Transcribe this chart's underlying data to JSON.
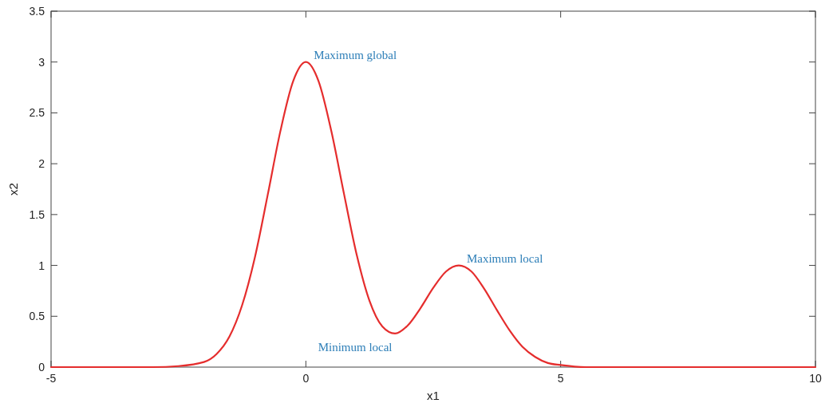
{
  "chart_data": {
    "type": "line",
    "xlabel": "x1",
    "ylabel": "x2",
    "x": [
      -5,
      -3,
      -2.5,
      -2,
      -1.75,
      -1.5,
      -1.25,
      -1,
      -0.75,
      -0.5,
      -0.25,
      0,
      0.25,
      0.5,
      0.75,
      1,
      1.25,
      1.5,
      1.75,
      2,
      2.25,
      2.5,
      2.75,
      3,
      3.25,
      3.5,
      3.75,
      4,
      4.25,
      4.5,
      4.75,
      5,
      5.5,
      6,
      10
    ],
    "series": [
      {
        "color": "#e52d2d",
        "values": [
          0,
          0,
          0.01,
          0.05,
          0.13,
          0.3,
          0.61,
          1.08,
          1.69,
          2.32,
          2.81,
          3,
          2.81,
          2.32,
          1.7,
          1.1,
          0.65,
          0.4,
          0.33,
          0.41,
          0.58,
          0.78,
          0.94,
          1,
          0.94,
          0.77,
          0.56,
          0.36,
          0.2,
          0.1,
          0.04,
          0.02,
          0,
          0,
          0
        ]
      }
    ],
    "xlim": [
      -5,
      10
    ],
    "xticks": [
      -5,
      0,
      5,
      10
    ],
    "ylim": [
      0,
      3.5
    ],
    "yticks": [
      0,
      0.5,
      1,
      1.5,
      2,
      2.5,
      3,
      3.5
    ],
    "grid": false,
    "marker": "none",
    "line_style": "solid",
    "annotations": [
      {
        "text": "Maximum global",
        "x": 0,
        "y": 3
      },
      {
        "text": "Maximum local",
        "x": 3,
        "y": 1
      },
      {
        "text": "Minimum local",
        "x": 1.75,
        "y": 0.33
      }
    ]
  }
}
